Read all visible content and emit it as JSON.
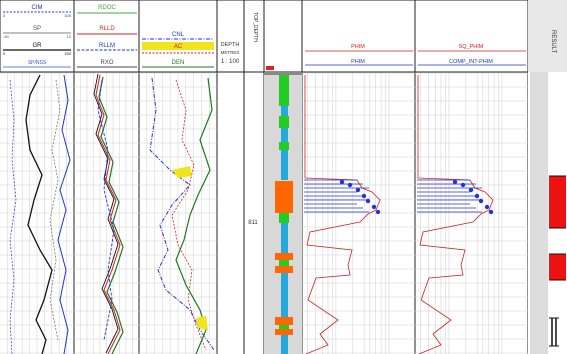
{
  "tracks": {
    "track1": {
      "curves": [
        {
          "name": "CIM",
          "min": "0",
          "max": "100",
          "color": "#2233cc"
        },
        {
          "name": "SP",
          "min": "-90",
          "max": "10",
          "color": "#555555"
        },
        {
          "name": "GR",
          "min": "0",
          "max": "150",
          "color": "#111111"
        },
        {
          "name": "SP/NSS",
          "min": "",
          "max": "",
          "color": "#3355cc"
        }
      ]
    },
    "track2": {
      "curves": [
        {
          "name": "RDOC",
          "min": "",
          "max": "",
          "color": "#44aa44"
        },
        {
          "name": "RLLD",
          "min": "",
          "max": "",
          "color": "#cc2222"
        },
        {
          "name": "RLLM",
          "min": "",
          "max": "",
          "color": "#2233cc"
        },
        {
          "name": "RXO",
          "min": "",
          "max": "",
          "color": "#444444"
        }
      ]
    },
    "track3": {
      "curves": [
        {
          "name": "CNL",
          "min": "",
          "max": "",
          "color": "#2233cc"
        },
        {
          "name": "AC",
          "min": "",
          "max": "",
          "color": "#cc2222"
        },
        {
          "name": "DEN",
          "min": "",
          "max": "",
          "color": "#227722"
        }
      ]
    },
    "depth": {
      "label": "DEPTH",
      "unit": "METRES",
      "scale": "1 : 100",
      "marker": "811"
    },
    "top_col": {
      "label": "TOP_DEPTH"
    },
    "phim": {
      "name": "PHIM",
      "min": "0.5",
      "max": "0",
      "color": "#cc2222"
    },
    "sq_phim": {
      "name": "SQ_PHIM",
      "curve2": "COMP_INT-PHIM",
      "color": "#cc2222"
    },
    "result": {
      "label": "RESULT"
    }
  }
}
